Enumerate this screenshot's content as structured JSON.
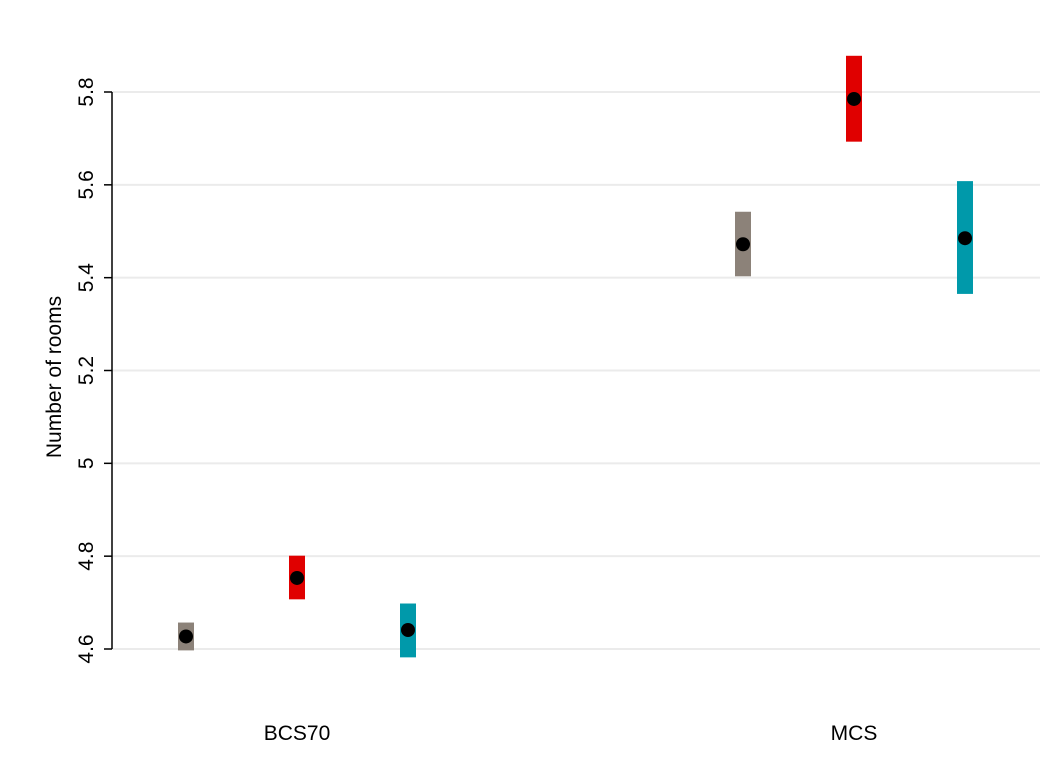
{
  "chart_data": {
    "type": "errorbar",
    "title": "",
    "xlabel": "",
    "ylabel": "Number of rooms",
    "categories": [
      "BCS70",
      "MCS"
    ],
    "ylim": [
      4.6,
      5.8
    ],
    "yticks": [
      4.6,
      4.8,
      5,
      5.2,
      5.4,
      5.6,
      5.8
    ],
    "ytick_labels": [
      "4.6",
      "4.8",
      "5",
      "5.2",
      "5.4",
      "5.6",
      "5.8"
    ],
    "grid": true,
    "legend": "none",
    "point_color": "#000000",
    "groups": [
      {
        "category": "BCS70",
        "estimates": [
          {
            "value": 4.627,
            "ci": [
              4.597,
              4.657
            ],
            "color": "#8c8279"
          },
          {
            "value": 4.753,
            "ci": [
              4.707,
              4.801
            ],
            "color": "#e00000"
          },
          {
            "value": 4.641,
            "ci": [
              4.582,
              4.698
            ],
            "color": "#0099aa"
          }
        ]
      },
      {
        "category": "MCS",
        "estimates": [
          {
            "value": 5.472,
            "ci": [
              5.403,
              5.542
            ],
            "color": "#8c8279"
          },
          {
            "value": 5.785,
            "ci": [
              5.693,
              5.878
            ],
            "color": "#e00000"
          },
          {
            "value": 5.485,
            "ci": [
              5.365,
              5.608
            ],
            "color": "#0099aa"
          }
        ]
      }
    ]
  }
}
